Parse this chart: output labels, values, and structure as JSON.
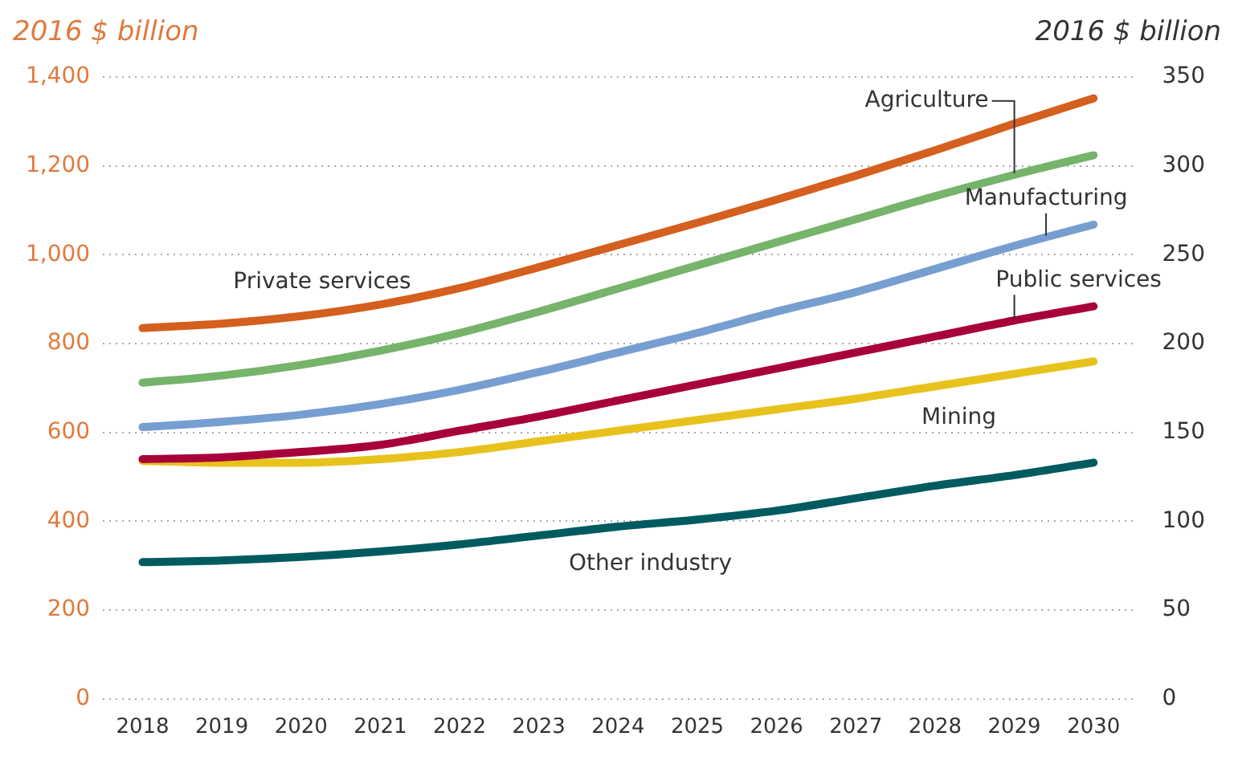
{
  "chart_data": {
    "type": "line",
    "ylabel": "2016 $ billion",
    "y2label": "2016 $ billion",
    "categories": [
      "2018",
      "2019",
      "2020",
      "2021",
      "2022",
      "2023",
      "2024",
      "2025",
      "2026",
      "2027",
      "2028",
      "2029",
      "2030"
    ],
    "series": [
      {
        "name": "Private services",
        "color": "#d45f1e",
        "axis": "y",
        "values": [
          835,
          845,
          862,
          888,
          925,
          972,
          1022,
          1072,
          1124,
          1178,
          1235,
          1295,
          1352
        ]
      },
      {
        "name": "Agriculture",
        "color": "#76b36b",
        "axis": "y2",
        "values": [
          178,
          182,
          188,
          196,
          206,
          218,
          231,
          244,
          257,
          270,
          283,
          295,
          306
        ]
      },
      {
        "name": "Manufacturing",
        "color": "#779ed0",
        "axis": "y2",
        "values": [
          153,
          156,
          160,
          166,
          174,
          184,
          195,
          206,
          218,
          229,
          242,
          255,
          267
        ]
      },
      {
        "name": "Public services",
        "color": "#a8003a",
        "axis": "y2",
        "values": [
          135,
          136,
          139,
          143,
          151,
          159,
          168,
          177,
          186,
          195,
          204,
          213,
          221
        ]
      },
      {
        "name": "Mining",
        "color": "#e8c21c",
        "axis": "y2",
        "values": [
          134,
          133,
          133,
          135,
          139,
          145,
          151,
          157,
          163,
          169,
          176,
          183,
          190
        ]
      },
      {
        "name": "Other industry",
        "color": "#005b61",
        "axis": "y2",
        "values": [
          77,
          78,
          80,
          83,
          87,
          92,
          97,
          101,
          106,
          113,
          120,
          126,
          133
        ]
      }
    ],
    "ylim": [
      0,
      1400
    ],
    "yticks": [
      0,
      200,
      400,
      600,
      800,
      {
        "value": 1000,
        "label": "1,000"
      },
      {
        "value": 1200,
        "label": "1,200"
      },
      {
        "value": 1400,
        "label": "1,400"
      }
    ],
    "y2lim": [
      0,
      350
    ],
    "y2ticks": [
      0,
      50,
      100,
      150,
      200,
      250,
      300,
      350
    ],
    "grid": "y",
    "legend": false,
    "marker": "none",
    "line_style": "solid"
  }
}
